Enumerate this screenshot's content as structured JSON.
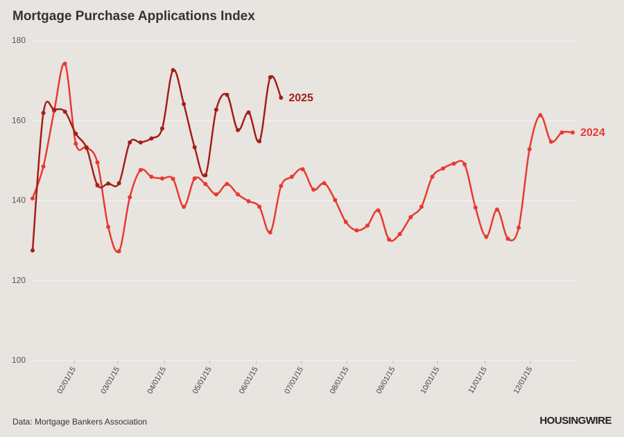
{
  "chart_data": {
    "type": "line",
    "title": "Mortgage Purchase Applications Index",
    "source": "Data: Mortgage Bankers Association",
    "logo": "HOUSINGWIRE",
    "x": [
      0,
      1,
      2,
      3,
      4,
      5,
      6,
      7,
      8,
      9,
      10,
      11,
      12,
      13,
      14,
      15,
      16,
      17,
      18,
      19,
      20,
      21,
      22,
      23,
      24,
      25,
      26,
      27,
      28,
      29,
      30,
      31,
      32,
      33,
      34,
      35,
      36,
      37,
      38,
      39,
      40,
      41,
      42,
      43,
      44,
      45,
      46,
      47,
      48,
      49,
      50
    ],
    "xlim": [
      0,
      50
    ],
    "xticks": [
      {
        "value": 3.85,
        "label": "02/01/15"
      },
      {
        "value": 7.9,
        "label": "03/01/15"
      },
      {
        "value": 12.2,
        "label": "04/01/15"
      },
      {
        "value": 16.4,
        "label": "05/01/15"
      },
      {
        "value": 20.7,
        "label": "06/01/15"
      },
      {
        "value": 24.9,
        "label": "07/01/15"
      },
      {
        "value": 29.1,
        "label": "08/01/15"
      },
      {
        "value": 33.4,
        "label": "09/01/15"
      },
      {
        "value": 37.5,
        "label": "10/01/15"
      },
      {
        "value": 41.9,
        "label": "11/01/15"
      },
      {
        "value": 46.1,
        "label": "12/01/15"
      }
    ],
    "ylim": [
      100,
      180
    ],
    "yticks": [
      100,
      120,
      140,
      160,
      180
    ],
    "grid": true,
    "series": [
      {
        "name": "2024",
        "color": "#e8392f",
        "values": [
          140.6,
          148.6,
          162.5,
          174.3,
          154.3,
          153.4,
          149.6,
          133.5,
          127.4,
          140.9,
          147.7,
          146.0,
          145.6,
          145.5,
          138.5,
          145.6,
          144.2,
          141.6,
          144.2,
          141.6,
          139.9,
          138.5,
          132.1,
          143.7,
          146.0,
          147.9,
          142.8,
          144.4,
          140.2,
          134.7,
          132.6,
          133.8,
          137.6,
          130.3,
          131.7,
          135.9,
          138.5,
          146.0,
          148.1,
          149.3,
          149.1,
          138.3,
          131.0,
          137.8,
          130.5,
          133.3,
          152.9,
          161.4,
          154.8,
          157.1,
          157.1
        ]
      },
      {
        "name": "2025",
        "color": "#a31e17",
        "values": [
          127.6,
          162.0,
          162.8,
          162.3,
          156.8,
          153.2,
          143.9,
          144.3,
          144.4,
          154.6,
          154.6,
          155.6,
          158.1,
          172.7,
          164.2,
          153.4,
          146.4,
          162.8,
          166.5,
          157.7,
          162.1,
          154.9,
          170.9,
          165.8,
          null,
          null,
          null,
          null,
          null,
          null,
          null,
          null,
          null,
          null,
          null,
          null,
          null,
          null,
          null,
          null,
          null,
          null,
          null,
          null,
          null,
          null,
          null,
          null,
          null,
          null,
          null
        ]
      }
    ]
  }
}
